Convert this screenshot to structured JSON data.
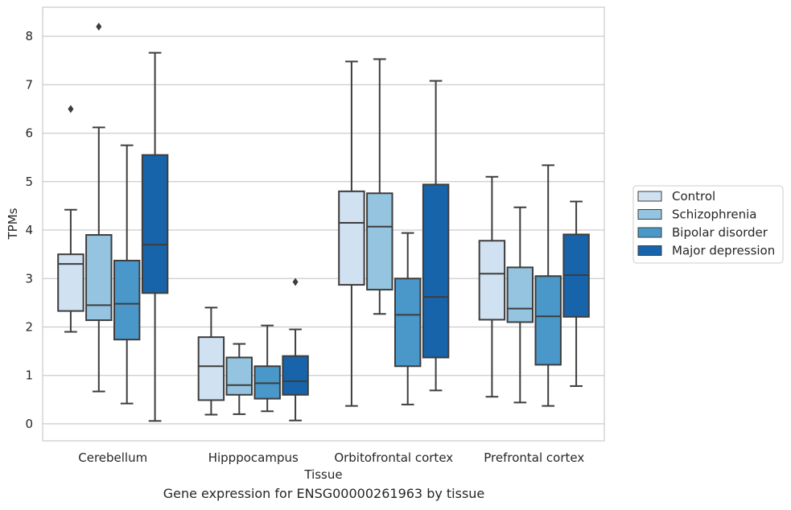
{
  "chart_data": {
    "type": "box",
    "caption": "Gene expression for ENSG00000261963 by tissue",
    "xlabel": "Tissue",
    "ylabel": "TPMs",
    "ylim": [
      -0.35,
      8.6
    ],
    "yticks": [
      0,
      1,
      2,
      3,
      4,
      5,
      6,
      7,
      8
    ],
    "grid": true,
    "legend_position": "right",
    "categories": [
      "Cerebellum",
      "Hipppocampus",
      "Orbitofrontal cortex",
      "Prefrontal cortex"
    ],
    "series": [
      {
        "name": "Control",
        "color": "#d0e1f2",
        "boxes": [
          {
            "whislo": 1.9,
            "q1": 2.33,
            "med": 3.3,
            "q3": 3.5,
            "whishi": 4.42,
            "fliers": [
              6.5
            ]
          },
          {
            "whislo": 0.19,
            "q1": 0.49,
            "med": 1.19,
            "q3": 1.79,
            "whishi": 2.4,
            "fliers": []
          },
          {
            "whislo": 0.37,
            "q1": 2.87,
            "med": 4.15,
            "q3": 4.8,
            "whishi": 7.48,
            "fliers": []
          },
          {
            "whislo": 0.56,
            "q1": 2.15,
            "med": 3.1,
            "q3": 3.78,
            "whishi": 5.1,
            "fliers": []
          }
        ]
      },
      {
        "name": "Schizophrenia",
        "color": "#94c4df",
        "boxes": [
          {
            "whislo": 0.67,
            "q1": 2.14,
            "med": 2.45,
            "q3": 3.9,
            "whishi": 6.12,
            "fliers": [
              8.2
            ]
          },
          {
            "whislo": 0.2,
            "q1": 0.6,
            "med": 0.8,
            "q3": 1.37,
            "whishi": 1.65,
            "fliers": []
          },
          {
            "whislo": 2.27,
            "q1": 2.77,
            "med": 4.07,
            "q3": 4.76,
            "whishi": 7.53,
            "fliers": []
          },
          {
            "whislo": 0.44,
            "q1": 2.1,
            "med": 2.38,
            "q3": 3.23,
            "whishi": 4.47,
            "fliers": []
          }
        ]
      },
      {
        "name": "Bipolar disorder",
        "color": "#4a98c9",
        "boxes": [
          {
            "whislo": 0.42,
            "q1": 1.74,
            "med": 2.48,
            "q3": 3.37,
            "whishi": 5.75,
            "fliers": []
          },
          {
            "whislo": 0.26,
            "q1": 0.52,
            "med": 0.84,
            "q3": 1.19,
            "whishi": 2.03,
            "fliers": []
          },
          {
            "whislo": 0.4,
            "q1": 1.19,
            "med": 2.25,
            "q3": 3.0,
            "whishi": 3.94,
            "fliers": []
          },
          {
            "whislo": 0.37,
            "q1": 1.22,
            "med": 2.22,
            "q3": 3.05,
            "whishi": 5.34,
            "fliers": []
          }
        ]
      },
      {
        "name": "Major depression",
        "color": "#1764ab",
        "boxes": [
          {
            "whislo": 0.06,
            "q1": 2.7,
            "med": 3.7,
            "q3": 5.55,
            "whishi": 7.66,
            "fliers": []
          },
          {
            "whislo": 0.07,
            "q1": 0.6,
            "med": 0.88,
            "q3": 1.4,
            "whishi": 1.95,
            "fliers": [
              2.93
            ]
          },
          {
            "whislo": 0.69,
            "q1": 1.37,
            "med": 2.62,
            "q3": 4.94,
            "whishi": 7.08,
            "fliers": []
          },
          {
            "whislo": 0.78,
            "q1": 2.21,
            "med": 3.07,
            "q3": 3.91,
            "whishi": 4.59,
            "fliers": []
          }
        ]
      }
    ]
  }
}
